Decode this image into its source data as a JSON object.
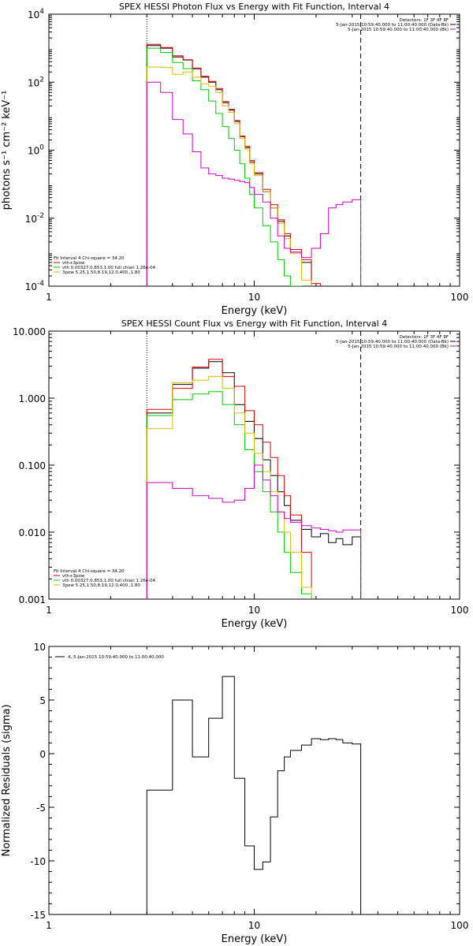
{
  "chart_data": [
    {
      "type": "line",
      "title": "SPEX HESSI Photon Flux vs Energy with Fit Function, Interval 4",
      "xlabel": "Energy (keV)",
      "ylabel": "photons s⁻¹ cm⁻² keV⁻¹",
      "x_scale": "log",
      "y_scale": "log",
      "xlim": [
        1,
        100
      ],
      "ylim": [
        0.0001,
        10000
      ],
      "x_ticks": [
        {
          "v": 1,
          "label": "1"
        },
        {
          "v": 10,
          "label": "10"
        },
        {
          "v": 100,
          "label": "100"
        }
      ],
      "y_ticks": [
        {
          "v": 0.0001,
          "base": "10",
          "exp": "-4"
        },
        {
          "v": 0.01,
          "base": "10",
          "exp": "-2"
        },
        {
          "v": 1,
          "base": "10",
          "exp": "0"
        },
        {
          "v": 100,
          "base": "10",
          "exp": "2"
        },
        {
          "v": 10000,
          "base": "10",
          "exp": "4"
        }
      ],
      "vlines": [
        {
          "x": 3.0,
          "style": "dotted"
        },
        {
          "x": 33.0,
          "style": "dashed"
        }
      ],
      "legend_top_right": [
        "Detectors: 1F 3F 4F 8F",
        "5-Jan-2015 10:59:40.000 to 11:00:40.000 (Data-Bk)",
        "5-Jan-2015 10:59:40.000 to 11:00:40.000 (Bk)"
      ],
      "legend_top_right_colors": [
        "#000000",
        "#000000",
        "#cc00cc"
      ],
      "legend_bottom_left": [
        "Fit Interval 4   Chi-square = 34.20",
        "vth+3pow",
        "vth 0.00327,0.853,1.00  full chian 1.26e-04",
        "3pow 5.25,1.50,8.19,12.0,400.,1.80"
      ],
      "legend_bottom_left_colors": [
        "#000000",
        "#dd0000",
        "#00cc00",
        "#ddbb00"
      ],
      "series": [
        {
          "color": "#000000",
          "edges": [
            3.0,
            3.5,
            4.0,
            4.5,
            5.0,
            5.5,
            6.0,
            6.5,
            7.0,
            7.5,
            8.0,
            8.5,
            9.0,
            9.5,
            10.0,
            11.0,
            12.0,
            13.0,
            14.0,
            15.0,
            17.0,
            19.0,
            21.0
          ],
          "values": [
            1200,
            1000,
            550,
            450,
            250,
            140,
            100,
            60,
            25,
            15,
            7,
            2.5,
            1.2,
            0.45,
            0.2,
            0.06,
            0.02,
            0.008,
            0.003,
            0.001,
            0.0005,
            0.0001
          ]
        },
        {
          "color": "#dd0000",
          "edges": [
            3.0,
            3.5,
            4.0,
            4.5,
            5.0,
            5.5,
            6.0,
            6.5,
            7.0,
            7.5,
            8.0,
            8.5,
            9.0,
            9.5,
            10.0,
            11.0,
            12.0,
            13.0,
            14.0,
            15.0,
            17.0,
            19.0,
            21.0
          ],
          "values": [
            1300,
            1050,
            600,
            460,
            260,
            150,
            105,
            65,
            27,
            16,
            7.5,
            2.6,
            1.3,
            0.5,
            0.22,
            0.07,
            0.025,
            0.009,
            0.0035,
            0.0012,
            0.0006,
            0.00012
          ]
        },
        {
          "color": "#00cc00",
          "edges": [
            3.0,
            3.5,
            4.0,
            4.5,
            5.0,
            5.5,
            6.0,
            6.5,
            7.0,
            7.5,
            8.0,
            8.5,
            9.0,
            9.5,
            10.0,
            11.0,
            12.0,
            13.0,
            14.0,
            15.0,
            17.0
          ],
          "values": [
            1000,
            750,
            380,
            250,
            110,
            60,
            28,
            12,
            5,
            2.2,
            1.0,
            0.4,
            0.15,
            0.05,
            0.02,
            0.006,
            0.002,
            0.0006,
            0.0002,
            0.0001
          ]
        },
        {
          "color": "#ddbb00",
          "edges": [
            3.0,
            3.5,
            4.0,
            4.5,
            5.0,
            5.5,
            6.0,
            6.5,
            7.0,
            7.5,
            8.0,
            8.5,
            9.0,
            9.5,
            10.0,
            11.0,
            12.0,
            13.0,
            14.0,
            15.0,
            17.0,
            19.0
          ],
          "values": [
            280,
            270,
            170,
            200,
            140,
            90,
            75,
            50,
            20,
            13,
            6,
            2.2,
            1.1,
            0.4,
            0.18,
            0.06,
            0.02,
            0.007,
            0.0025,
            0.0009,
            0.00015
          ]
        },
        {
          "color": "#cc00cc",
          "edges": [
            3.0,
            3.5,
            4.0,
            4.5,
            5.0,
            5.5,
            6.0,
            6.5,
            7.0,
            7.5,
            8.0,
            8.5,
            9.0,
            9.5,
            10.0,
            11.0,
            12.0,
            13.0,
            14.0,
            15.0,
            17.0,
            19.0,
            21.0,
            23.0,
            25.0,
            27.0,
            30.0,
            33.0
          ],
          "values": [
            100,
            50,
            8,
            3,
            0.9,
            0.3,
            0.2,
            0.18,
            0.15,
            0.14,
            0.13,
            0.12,
            0.11,
            0.08,
            0.05,
            0.03,
            0.01,
            0.003,
            0.0013,
            0.001,
            0.0007,
            0.0013,
            0.0035,
            0.02,
            0.025,
            0.03,
            0.035
          ]
        }
      ]
    },
    {
      "type": "line",
      "title": "SPEX HESSI Count Flux vs Energy with Fit Function, Interval 4",
      "xlabel": "Energy (keV)",
      "ylabel": "",
      "x_scale": "log",
      "y_scale": "log",
      "xlim": [
        1,
        100
      ],
      "ylim": [
        0.001,
        10
      ],
      "x_ticks": [
        {
          "v": 1,
          "label": "1"
        },
        {
          "v": 10,
          "label": "10"
        },
        {
          "v": 100,
          "label": "100"
        }
      ],
      "y_ticks": [
        {
          "v": 0.001,
          "label": "0.001"
        },
        {
          "v": 0.01,
          "label": "0.010"
        },
        {
          "v": 0.1,
          "label": "0.100"
        },
        {
          "v": 1,
          "label": "1.000"
        },
        {
          "v": 10,
          "label": "10.000"
        }
      ],
      "vlines": [
        {
          "x": 3.0,
          "style": "dotted"
        },
        {
          "x": 33.0,
          "style": "dashed"
        }
      ],
      "legend_top_right": [
        "Detectors: 1F 3F 4F 8F",
        "5-Jan-2015 10:59:40.000 to 11:00:40.000 (Data-Bk)",
        "5-Jan-2015 10:59:40.000 to 11:00:40.000 (Bk)"
      ],
      "legend_top_right_colors": [
        "#000000",
        "#000000",
        "#cc00cc"
      ],
      "legend_bottom_left": [
        "Fit Interval 4   Chi-square = 34.20",
        "vth+3pow",
        "vth 0.00327,0.853,1.00  full chian 1.26e-04",
        "3pow 5.25,1.50,8.19,12.0,400.,1.80"
      ],
      "legend_bottom_left_colors": [
        "#000000",
        "#dd0000",
        "#00cc00",
        "#ddbb00"
      ],
      "series": [
        {
          "color": "#000000",
          "edges": [
            3.0,
            4.0,
            5.0,
            6.0,
            7.0,
            8.0,
            9.0,
            10.0,
            11.0,
            12.0,
            13.0,
            14.0,
            15.0,
            17.0,
            19.0,
            21.0,
            23.0,
            25.0,
            27.0,
            30.0,
            33.0
          ],
          "values": [
            0.6,
            1.6,
            2.8,
            3.5,
            2.4,
            0.8,
            0.45,
            0.25,
            0.12,
            0.07,
            0.04,
            0.025,
            0.015,
            0.011,
            0.0085,
            0.0095,
            0.007,
            0.008,
            0.0065,
            0.0085
          ]
        },
        {
          "color": "#dd0000",
          "edges": [
            3.0,
            4.0,
            5.0,
            6.0,
            7.0,
            8.0,
            9.0,
            10.0,
            11.0,
            12.0,
            13.0,
            14.0,
            15.0,
            17.0,
            19.0
          ],
          "values": [
            0.68,
            1.4,
            2.9,
            3.8,
            2.1,
            1.5,
            0.65,
            0.4,
            0.22,
            0.13,
            0.07,
            0.035,
            0.018,
            0.005,
            0.0015
          ]
        },
        {
          "color": "#00cc00",
          "edges": [
            3.0,
            4.0,
            5.0,
            6.0,
            7.0,
            8.0,
            9.0,
            10.0,
            11.0,
            12.0,
            13.0,
            14.0,
            15.0,
            17.0,
            19.0
          ],
          "values": [
            0.55,
            0.95,
            1.15,
            1.25,
            0.8,
            0.4,
            0.17,
            0.08,
            0.04,
            0.02,
            0.01,
            0.005,
            0.0025,
            0.0012,
            0.0008
          ]
        },
        {
          "color": "#ddbb00",
          "edges": [
            3.0,
            4.0,
            5.0,
            6.0,
            7.0,
            8.0,
            9.0,
            10.0,
            11.0,
            12.0,
            13.0,
            14.0,
            15.0,
            17.0,
            19.0
          ],
          "values": [
            0.35,
            1.7,
            1.85,
            2.1,
            1.4,
            0.6,
            0.3,
            0.15,
            0.08,
            0.04,
            0.02,
            0.01,
            0.005,
            0.0015,
            0.0011
          ]
        },
        {
          "color": "#cc00cc",
          "edges": [
            3.0,
            4.0,
            5.0,
            6.0,
            7.0,
            8.0,
            9.0,
            10.0,
            11.0,
            12.0,
            13.0,
            14.0,
            15.0,
            17.0,
            19.0,
            21.0,
            23.0,
            25.0,
            27.0,
            30.0,
            33.0
          ],
          "values": [
            0.055,
            0.045,
            0.035,
            0.032,
            0.028,
            0.03,
            0.045,
            0.1,
            0.06,
            0.035,
            0.02,
            0.016,
            0.014,
            0.0125,
            0.0115,
            0.011,
            0.0105,
            0.01,
            0.0108,
            0.0108
          ]
        }
      ]
    },
    {
      "type": "line",
      "title": "",
      "xlabel": "Energy (keV)",
      "ylabel": "Normalized Residuals (sigma)",
      "x_scale": "log",
      "y_scale": "linear",
      "xlim": [
        1,
        100
      ],
      "ylim": [
        -15,
        10
      ],
      "x_ticks": [
        {
          "v": 1,
          "label": "1"
        },
        {
          "v": 10,
          "label": "10"
        },
        {
          "v": 100,
          "label": "100"
        }
      ],
      "y_ticks": [
        {
          "v": -15,
          "label": "-15"
        },
        {
          "v": -10,
          "label": "-10"
        },
        {
          "v": -5,
          "label": "-5"
        },
        {
          "v": 0,
          "label": "0"
        },
        {
          "v": 5,
          "label": "5"
        },
        {
          "v": 10,
          "label": "10"
        }
      ],
      "legend_top_left": [
        "4,  5-Jan-2015 10:59:40.000 to 11:00:40.000"
      ],
      "legend_top_left_colors": [
        "#000000"
      ],
      "series": [
        {
          "color": "#000000",
          "edges": [
            3.0,
            4.0,
            5.0,
            6.0,
            7.0,
            8.0,
            9.0,
            10.0,
            11.0,
            12.0,
            13.0,
            14.0,
            15.0,
            17.0,
            19.0,
            21.0,
            23.0,
            25.0,
            27.0,
            30.0,
            33.0
          ],
          "values": [
            -3.4,
            5.0,
            -0.3,
            3.3,
            7.2,
            -2.3,
            -8.6,
            -10.8,
            -10.1,
            -5.9,
            -1.6,
            -0.3,
            0.3,
            0.8,
            1.4,
            1.3,
            1.4,
            1.3,
            1.0,
            0.9
          ],
          "drop_edges": true
        }
      ]
    }
  ]
}
